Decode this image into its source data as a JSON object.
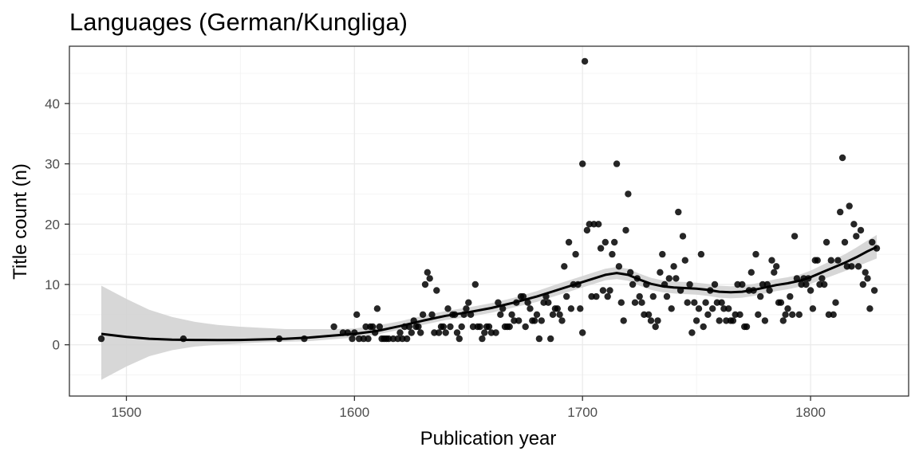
{
  "chart_data": {
    "type": "scatter",
    "title": "Languages (German/Kungliga)",
    "xlabel": "Publication year",
    "ylabel": "Title count (n)",
    "xlim": [
      1475,
      1843
    ],
    "ylim": [
      -8.5,
      49.5
    ],
    "x_ticks": [
      1500,
      1600,
      1700,
      1800
    ],
    "y_ticks": [
      0,
      10,
      20,
      30,
      40
    ],
    "grid": true,
    "legend": "none",
    "colors": {
      "points": "#000000",
      "smooth_line": "#000000",
      "confidence_band": "#d3d3d3",
      "panel_border": "#333333",
      "grid_major": "#ebebeb",
      "grid_minor": "#f4f4f4"
    },
    "points": [
      [
        1489,
        1
      ],
      [
        1525,
        1
      ],
      [
        1567,
        1
      ],
      [
        1578,
        1
      ],
      [
        1591,
        3
      ],
      [
        1595,
        2
      ],
      [
        1597,
        2
      ],
      [
        1599,
        1
      ],
      [
        1600,
        2
      ],
      [
        1601,
        5
      ],
      [
        1602,
        1
      ],
      [
        1604,
        1
      ],
      [
        1605,
        3
      ],
      [
        1606,
        1
      ],
      [
        1607,
        3
      ],
      [
        1608,
        3
      ],
      [
        1609,
        2
      ],
      [
        1610,
        6
      ],
      [
        1611,
        3
      ],
      [
        1612,
        1
      ],
      [
        1613,
        1
      ],
      [
        1614,
        1
      ],
      [
        1615,
        1
      ],
      [
        1617,
        1
      ],
      [
        1619,
        1
      ],
      [
        1620,
        2
      ],
      [
        1621,
        1
      ],
      [
        1622,
        3
      ],
      [
        1623,
        1
      ],
      [
        1624,
        3
      ],
      [
        1625,
        2
      ],
      [
        1626,
        4
      ],
      [
        1627,
        3
      ],
      [
        1628,
        3
      ],
      [
        1629,
        2
      ],
      [
        1630,
        5
      ],
      [
        1631,
        10
      ],
      [
        1632,
        12
      ],
      [
        1633,
        11
      ],
      [
        1634,
        5
      ],
      [
        1635,
        2
      ],
      [
        1636,
        9
      ],
      [
        1637,
        2
      ],
      [
        1638,
        3
      ],
      [
        1639,
        3
      ],
      [
        1640,
        2
      ],
      [
        1641,
        6
      ],
      [
        1642,
        3
      ],
      [
        1643,
        5
      ],
      [
        1644,
        5
      ],
      [
        1645,
        2
      ],
      [
        1646,
        1
      ],
      [
        1647,
        3
      ],
      [
        1648,
        5
      ],
      [
        1649,
        6
      ],
      [
        1650,
        7
      ],
      [
        1651,
        5
      ],
      [
        1652,
        3
      ],
      [
        1653,
        10
      ],
      [
        1654,
        3
      ],
      [
        1655,
        3
      ],
      [
        1656,
        1
      ],
      [
        1657,
        2
      ],
      [
        1658,
        3
      ],
      [
        1659,
        3
      ],
      [
        1660,
        2
      ],
      [
        1662,
        2
      ],
      [
        1663,
        7
      ],
      [
        1664,
        5
      ],
      [
        1665,
        6
      ],
      [
        1666,
        3
      ],
      [
        1667,
        3
      ],
      [
        1668,
        3
      ],
      [
        1669,
        5
      ],
      [
        1670,
        4
      ],
      [
        1671,
        7
      ],
      [
        1672,
        4
      ],
      [
        1673,
        8
      ],
      [
        1674,
        8
      ],
      [
        1675,
        3
      ],
      [
        1676,
        7
      ],
      [
        1677,
        6
      ],
      [
        1678,
        4
      ],
      [
        1679,
        4
      ],
      [
        1680,
        5
      ],
      [
        1681,
        1
      ],
      [
        1682,
        4
      ],
      [
        1683,
        7
      ],
      [
        1684,
        8
      ],
      [
        1685,
        7
      ],
      [
        1686,
        1
      ],
      [
        1687,
        5
      ],
      [
        1688,
        6
      ],
      [
        1689,
        6
      ],
      [
        1690,
        5
      ],
      [
        1691,
        4
      ],
      [
        1692,
        13
      ],
      [
        1693,
        8
      ],
      [
        1694,
        17
      ],
      [
        1695,
        6
      ],
      [
        1696,
        10
      ],
      [
        1697,
        15
      ],
      [
        1698,
        10
      ],
      [
        1699,
        6
      ],
      [
        1700,
        2
      ],
      [
        1700,
        30
      ],
      [
        1701,
        47
      ],
      [
        1702,
        19
      ],
      [
        1703,
        20
      ],
      [
        1704,
        8
      ],
      [
        1705,
        20
      ],
      [
        1706,
        8
      ],
      [
        1707,
        20
      ],
      [
        1708,
        16
      ],
      [
        1709,
        9
      ],
      [
        1710,
        17
      ],
      [
        1711,
        8
      ],
      [
        1712,
        9
      ],
      [
        1713,
        15
      ],
      [
        1714,
        17
      ],
      [
        1715,
        30
      ],
      [
        1716,
        13
      ],
      [
        1717,
        7
      ],
      [
        1718,
        4
      ],
      [
        1719,
        19
      ],
      [
        1720,
        25
      ],
      [
        1721,
        12
      ],
      [
        1722,
        10
      ],
      [
        1723,
        7
      ],
      [
        1724,
        11
      ],
      [
        1725,
        8
      ],
      [
        1726,
        7
      ],
      [
        1727,
        5
      ],
      [
        1728,
        10
      ],
      [
        1729,
        5
      ],
      [
        1730,
        4
      ],
      [
        1731,
        8
      ],
      [
        1732,
        3
      ],
      [
        1733,
        4
      ],
      [
        1734,
        12
      ],
      [
        1735,
        15
      ],
      [
        1736,
        10
      ],
      [
        1737,
        8
      ],
      [
        1738,
        11
      ],
      [
        1739,
        6
      ],
      [
        1740,
        13
      ],
      [
        1741,
        11
      ],
      [
        1742,
        22
      ],
      [
        1743,
        9
      ],
      [
        1744,
        18
      ],
      [
        1745,
        14
      ],
      [
        1746,
        7
      ],
      [
        1747,
        10
      ],
      [
        1748,
        2
      ],
      [
        1749,
        7
      ],
      [
        1750,
        4
      ],
      [
        1751,
        6
      ],
      [
        1752,
        15
      ],
      [
        1753,
        3
      ],
      [
        1754,
        7
      ],
      [
        1755,
        5
      ],
      [
        1756,
        9
      ],
      [
        1757,
        6
      ],
      [
        1758,
        10
      ],
      [
        1759,
        7
      ],
      [
        1760,
        4
      ],
      [
        1761,
        7
      ],
      [
        1762,
        6
      ],
      [
        1763,
        4
      ],
      [
        1764,
        6
      ],
      [
        1765,
        4
      ],
      [
        1766,
        4
      ],
      [
        1767,
        5
      ],
      [
        1768,
        10
      ],
      [
        1769,
        5
      ],
      [
        1770,
        10
      ],
      [
        1771,
        3
      ],
      [
        1772,
        3
      ],
      [
        1773,
        9
      ],
      [
        1774,
        12
      ],
      [
        1775,
        9
      ],
      [
        1776,
        15
      ],
      [
        1777,
        5
      ],
      [
        1778,
        8
      ],
      [
        1779,
        10
      ],
      [
        1780,
        4
      ],
      [
        1781,
        10
      ],
      [
        1782,
        9
      ],
      [
        1783,
        14
      ],
      [
        1784,
        12
      ],
      [
        1785,
        13
      ],
      [
        1786,
        7
      ],
      [
        1787,
        7
      ],
      [
        1788,
        4
      ],
      [
        1789,
        5
      ],
      [
        1790,
        6
      ],
      [
        1791,
        8
      ],
      [
        1792,
        5
      ],
      [
        1793,
        18
      ],
      [
        1794,
        11
      ],
      [
        1795,
        5
      ],
      [
        1796,
        10
      ],
      [
        1797,
        11
      ],
      [
        1798,
        10
      ],
      [
        1799,
        11
      ],
      [
        1800,
        9
      ],
      [
        1801,
        6
      ],
      [
        1802,
        14
      ],
      [
        1803,
        14
      ],
      [
        1804,
        10
      ],
      [
        1805,
        11
      ],
      [
        1806,
        10
      ],
      [
        1807,
        17
      ],
      [
        1808,
        5
      ],
      [
        1809,
        14
      ],
      [
        1810,
        5
      ],
      [
        1811,
        7
      ],
      [
        1812,
        14
      ],
      [
        1813,
        22
      ],
      [
        1814,
        31
      ],
      [
        1815,
        17
      ],
      [
        1816,
        13
      ],
      [
        1817,
        23
      ],
      [
        1818,
        13
      ],
      [
        1819,
        20
      ],
      [
        1820,
        18
      ],
      [
        1821,
        13
      ],
      [
        1822,
        19
      ],
      [
        1823,
        10
      ],
      [
        1824,
        12
      ],
      [
        1825,
        11
      ],
      [
        1826,
        6
      ],
      [
        1827,
        17
      ],
      [
        1828,
        9
      ],
      [
        1829,
        16
      ]
    ],
    "smooth": [
      [
        1489,
        1.8
      ],
      [
        1500,
        1.3
      ],
      [
        1510,
        1.0
      ],
      [
        1520,
        0.85
      ],
      [
        1530,
        0.8
      ],
      [
        1540,
        0.78
      ],
      [
        1550,
        0.8
      ],
      [
        1560,
        0.9
      ],
      [
        1570,
        1.0
      ],
      [
        1580,
        1.2
      ],
      [
        1590,
        1.5
      ],
      [
        1600,
        1.8
      ],
      [
        1610,
        2.3
      ],
      [
        1620,
        3.1
      ],
      [
        1630,
        4.0
      ],
      [
        1640,
        4.8
      ],
      [
        1650,
        5.4
      ],
      [
        1660,
        6.1
      ],
      [
        1670,
        7.0
      ],
      [
        1680,
        8.0
      ],
      [
        1690,
        9.2
      ],
      [
        1700,
        10.4
      ],
      [
        1705,
        11.0
      ],
      [
        1710,
        11.6
      ],
      [
        1715,
        11.9
      ],
      [
        1720,
        11.6
      ],
      [
        1725,
        10.8
      ],
      [
        1730,
        10.1
      ],
      [
        1735,
        9.7
      ],
      [
        1740,
        9.5
      ],
      [
        1745,
        9.4
      ],
      [
        1750,
        9.3
      ],
      [
        1755,
        9.1
      ],
      [
        1760,
        8.8
      ],
      [
        1765,
        8.7
      ],
      [
        1770,
        8.8
      ],
      [
        1775,
        9.1
      ],
      [
        1780,
        9.5
      ],
      [
        1785,
        9.9
      ],
      [
        1790,
        10.2
      ],
      [
        1795,
        10.6
      ],
      [
        1800,
        11.2
      ],
      [
        1805,
        12.0
      ],
      [
        1810,
        12.8
      ],
      [
        1815,
        13.6
      ],
      [
        1820,
        14.5
      ],
      [
        1825,
        15.5
      ],
      [
        1829,
        16.2
      ]
    ],
    "band": [
      [
        1489,
        -5.8,
        9.8
      ],
      [
        1500,
        -3.6,
        7.6
      ],
      [
        1510,
        -1.9,
        5.8
      ],
      [
        1520,
        -0.9,
        4.6
      ],
      [
        1530,
        -0.3,
        3.8
      ],
      [
        1540,
        0.0,
        3.3
      ],
      [
        1550,
        0.2,
        3.0
      ],
      [
        1560,
        0.4,
        2.8
      ],
      [
        1570,
        0.5,
        2.6
      ],
      [
        1580,
        0.6,
        2.6
      ],
      [
        1590,
        0.9,
        2.6
      ],
      [
        1600,
        1.2,
        2.7
      ],
      [
        1610,
        1.7,
        3.2
      ],
      [
        1620,
        2.5,
        3.9
      ],
      [
        1630,
        3.3,
        4.8
      ],
      [
        1640,
        4.1,
        5.6
      ],
      [
        1650,
        4.6,
        6.2
      ],
      [
        1660,
        5.3,
        6.9
      ],
      [
        1670,
        6.2,
        7.8
      ],
      [
        1680,
        7.1,
        8.9
      ],
      [
        1690,
        8.3,
        10.2
      ],
      [
        1700,
        9.5,
        11.4
      ],
      [
        1705,
        10.1,
        12.0
      ],
      [
        1710,
        10.7,
        12.6
      ],
      [
        1715,
        10.9,
        12.9
      ],
      [
        1720,
        10.6,
        12.6
      ],
      [
        1725,
        9.8,
        11.8
      ],
      [
        1730,
        9.1,
        11.1
      ],
      [
        1735,
        8.7,
        10.7
      ],
      [
        1740,
        8.5,
        10.5
      ],
      [
        1745,
        8.4,
        10.4
      ],
      [
        1750,
        8.3,
        10.3
      ],
      [
        1755,
        8.1,
        10.1
      ],
      [
        1760,
        7.8,
        9.8
      ],
      [
        1765,
        7.7,
        9.7
      ],
      [
        1770,
        7.8,
        9.8
      ],
      [
        1775,
        8.1,
        10.1
      ],
      [
        1780,
        8.5,
        10.5
      ],
      [
        1785,
        8.9,
        10.9
      ],
      [
        1790,
        9.2,
        11.2
      ],
      [
        1795,
        9.6,
        11.6
      ],
      [
        1800,
        10.1,
        12.3
      ],
      [
        1805,
        10.8,
        13.2
      ],
      [
        1810,
        11.5,
        14.1
      ],
      [
        1815,
        12.2,
        15.0
      ],
      [
        1820,
        12.9,
        16.1
      ],
      [
        1825,
        13.7,
        17.3
      ],
      [
        1829,
        14.3,
        18.2
      ]
    ]
  }
}
